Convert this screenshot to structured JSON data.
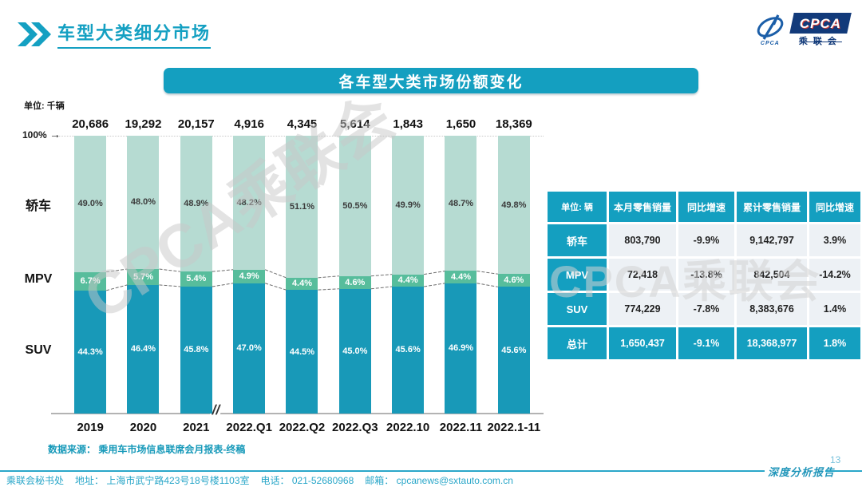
{
  "header": {
    "title": "车型大类细分市场"
  },
  "logo": {
    "icon_name": "cpca-pen-oval",
    "icon_caption": "CPCA",
    "box_text": "CPCA",
    "sub_text": "乘联会"
  },
  "watermark": "CPCA乘联会",
  "chart_data": {
    "type": "bar",
    "subtype": "stacked-100-percent",
    "title": "各车型大类市场份额变化",
    "unit_label": "单位: 千辆",
    "top_axis_label": "100%",
    "top_axis_arrow": "→",
    "axis_break_symbol": "//",
    "axis_break_after_index": 2,
    "legend_position": "left-of-bars",
    "grid": false,
    "categories": [
      "2019",
      "2020",
      "2021",
      "2022.Q1",
      "2022.Q2",
      "2022.Q3",
      "2022.10",
      "2022.11",
      "2022.1-11"
    ],
    "totals": [
      "20,686",
      "19,292",
      "20,157",
      "4,916",
      "4,345",
      "5,614",
      "1,843",
      "1,650",
      "18,369"
    ],
    "series": [
      {
        "key": "sedan",
        "name": "轿车",
        "color": "#b6dbd2",
        "label_color": "#3c3c3c",
        "values": [
          49.0,
          48.0,
          48.9,
          48.2,
          51.1,
          50.5,
          49.9,
          48.7,
          49.8
        ]
      },
      {
        "key": "mpv",
        "name": "MPV",
        "color": "#57bd9c",
        "label_color": "#ffffff",
        "values": [
          6.7,
          5.7,
          5.4,
          4.9,
          4.4,
          4.6,
          4.4,
          4.4,
          4.6
        ]
      },
      {
        "key": "suv",
        "name": "SUV",
        "color": "#1899b8",
        "label_color": "#ffffff",
        "values": [
          44.3,
          46.4,
          45.8,
          47.0,
          44.5,
          45.0,
          45.6,
          46.9,
          45.6
        ]
      }
    ],
    "connector_style": "dashed",
    "ylim": [
      0,
      100
    ]
  },
  "table": {
    "headers": [
      "单位: 辆",
      "本月零售销量",
      "同比增速",
      "累计零售销量",
      "同比增速"
    ],
    "rows": [
      {
        "label": "轿车",
        "cells": [
          "803,790",
          "-9.9%",
          "9,142,797",
          "3.9%"
        ],
        "highlight": false
      },
      {
        "label": "MPV",
        "cells": [
          "72,418",
          "-13.8%",
          "842,504",
          "-14.2%"
        ],
        "highlight": false
      },
      {
        "label": "SUV",
        "cells": [
          "774,229",
          "-7.8%",
          "8,383,676",
          "1.4%"
        ],
        "highlight": false
      },
      {
        "label": "总计",
        "cells": [
          "1,650,437",
          "-9.1%",
          "18,368,977",
          "1.8%"
        ],
        "highlight": true
      }
    ]
  },
  "source_note": "数据来源： 乘用车市场信息联席会月报表-终稿",
  "footer": {
    "org": "乘联会秘书处",
    "address": "地址： 上海市武宁路423号18号楼1103室",
    "phone": "电话： 021-52680968",
    "email_label": "邮箱：",
    "email": "cpcanews@sxtauto.com.cn",
    "report_type": "深度分析报告",
    "page": "13"
  },
  "colors": {
    "accent_teal": "#149fc0",
    "sedan": "#b6dbd2",
    "mpv": "#57bd9c",
    "suv": "#1899b8",
    "navy": "#123a7a",
    "footer_teal": "#2aa7c9"
  }
}
